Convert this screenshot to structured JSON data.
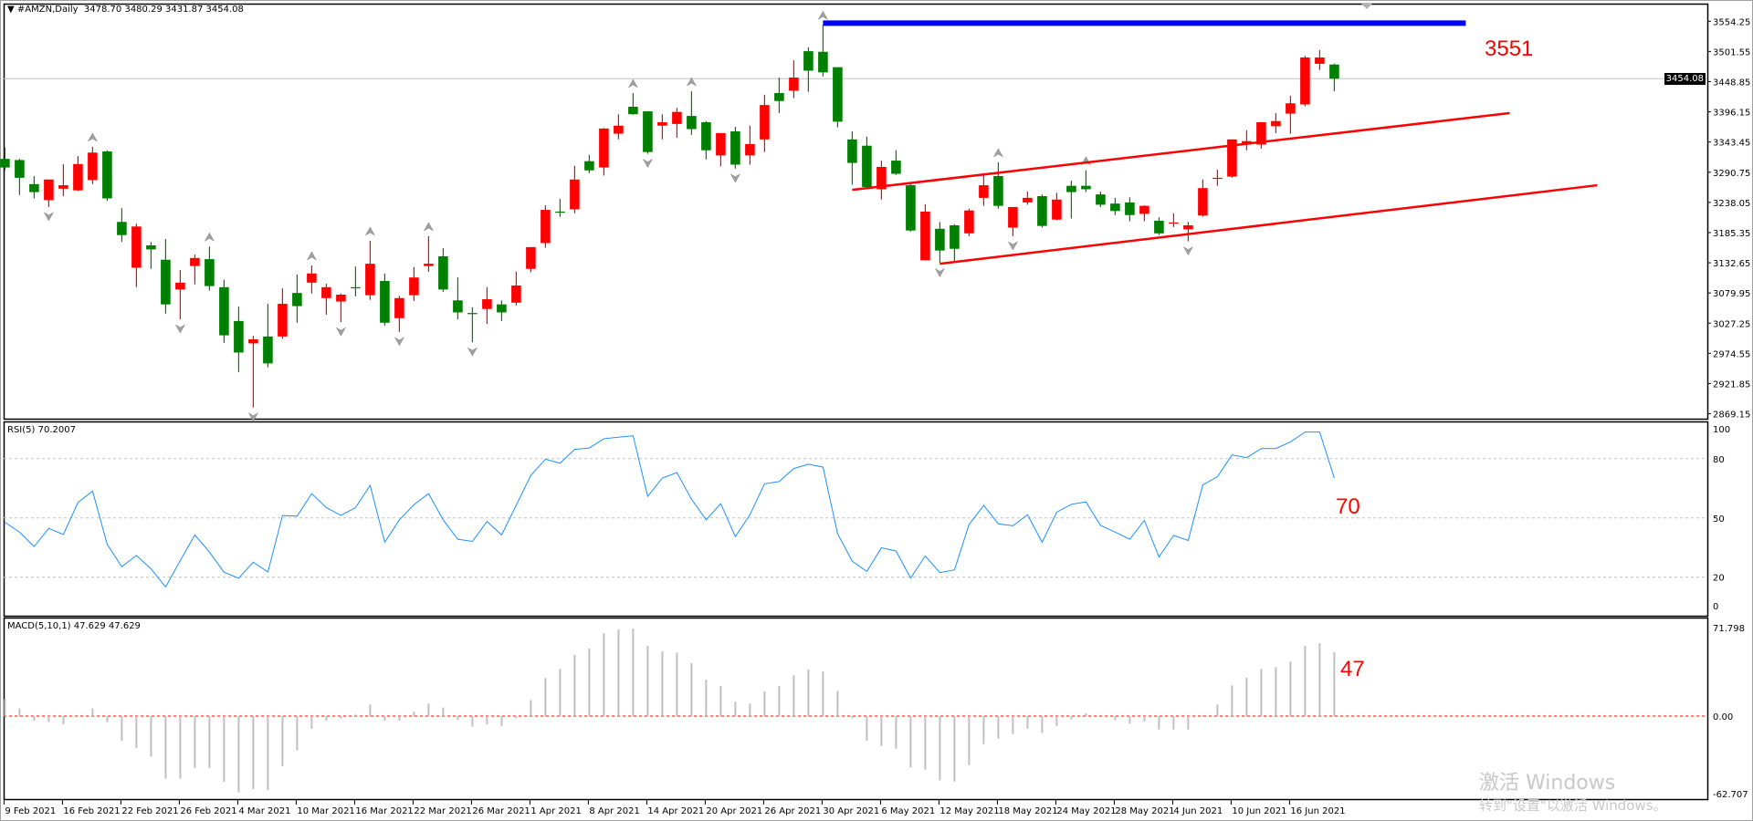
{
  "chart": {
    "symbol_title": "#AMZN,Daily",
    "ohlc_readout": "3478.70 3480.29 3431.87 3454.08",
    "current_price": "3454.08",
    "colors": {
      "bull": "#ff0000",
      "bear": "#008000",
      "rsi": "#1e90ff",
      "macd_hist": "#c0c0c0",
      "resistance": "#0000ff",
      "channel": "#ff0000"
    },
    "price_axis": [
      "3554.25",
      "3501.55",
      "3448.85",
      "3396.15",
      "3343.45",
      "3290.75",
      "3238.05",
      "3185.35",
      "3132.65",
      "3079.95",
      "3027.25",
      "2974.55",
      "2921.85",
      "2869.15"
    ],
    "date_labels": [
      "9 Feb 2021",
      "16 Feb 2021",
      "22 Feb 2021",
      "26 Feb 2021",
      "4 Mar 2021",
      "10 Mar 2021",
      "16 Mar 2021",
      "22 Mar 2021",
      "26 Mar 2021",
      "1 Apr 2021",
      "8 Apr 2021",
      "14 Apr 2021",
      "20 Apr 2021",
      "26 Apr 2021",
      "30 Apr 2021",
      "6 May 2021",
      "12 May 2021",
      "18 May 2021",
      "24 May 2021",
      "28 May 2021",
      "4 Jun 2021",
      "10 Jun 2021",
      "16 Jun 2021"
    ],
    "annotation_price": "3551",
    "annotation_rsi": "70",
    "annotation_macd": "47"
  },
  "rsi": {
    "title": "RSI(5) 70.2007",
    "axis": [
      "100",
      "80",
      "50",
      "20",
      "0"
    ]
  },
  "macd": {
    "title": "MACD(5,10,1) 47.629 47.629",
    "axis": [
      "71.798",
      "0.00",
      "-62.707"
    ]
  },
  "watermark": {
    "line1": "激活 Windows",
    "line2": "转到\"设置\"以激活 Windows。"
  },
  "chart_data": {
    "type": "candlestick",
    "ohlc": [
      [
        3314,
        3334,
        3294,
        3299
      ],
      [
        3312,
        3314,
        3251,
        3281
      ],
      [
        3270,
        3284,
        3245,
        3256
      ],
      [
        3242,
        3278,
        3230,
        3278
      ],
      [
        3262,
        3305,
        3249,
        3268
      ],
      [
        3259,
        3319,
        3258,
        3305
      ],
      [
        3277,
        3335,
        3270,
        3325
      ],
      [
        3327,
        3329,
        3241,
        3245
      ],
      [
        3204,
        3228,
        3169,
        3181
      ],
      [
        3124,
        3201,
        3090,
        3196
      ],
      [
        3163,
        3169,
        3122,
        3156
      ],
      [
        3138,
        3174,
        3044,
        3060
      ],
      [
        3086,
        3120,
        3034,
        3098
      ],
      [
        3127,
        3147,
        3095,
        3141
      ],
      [
        3139,
        3161,
        3084,
        3092
      ],
      [
        3090,
        3103,
        2993,
        3006
      ],
      [
        3031,
        3056,
        2942,
        2976
      ],
      [
        2992,
        3005,
        2880,
        2999
      ],
      [
        3004,
        3061,
        2950,
        2957
      ],
      [
        3004,
        3088,
        3000,
        3061
      ],
      [
        3080,
        3112,
        3028,
        3057
      ],
      [
        3098,
        3128,
        3079,
        3114
      ],
      [
        3071,
        3096,
        3042,
        3090
      ],
      [
        3065,
        3079,
        3029,
        3077
      ],
      [
        3090,
        3126,
        3074,
        3089
      ],
      [
        3076,
        3171,
        3068,
        3131
      ],
      [
        3101,
        3114,
        3023,
        3028
      ],
      [
        3036,
        3075,
        3012,
        3071
      ],
      [
        3076,
        3125,
        3066,
        3107
      ],
      [
        3127,
        3179,
        3117,
        3131
      ],
      [
        3144,
        3158,
        3082,
        3086
      ],
      [
        3067,
        3107,
        3034,
        3046
      ],
      [
        3045,
        3055,
        2994,
        3043
      ],
      [
        3052,
        3090,
        3026,
        3069
      ],
      [
        3060,
        3067,
        3031,
        3046
      ],
      [
        3063,
        3117,
        3058,
        3093
      ],
      [
        3122,
        3160,
        3116,
        3160
      ],
      [
        3167,
        3233,
        3159,
        3225
      ],
      [
        3222,
        3244,
        3213,
        3220
      ],
      [
        3226,
        3302,
        3219,
        3278
      ],
      [
        3310,
        3321,
        3289,
        3294
      ],
      [
        3299,
        3368,
        3285,
        3367
      ],
      [
        3358,
        3392,
        3348,
        3372
      ],
      [
        3405,
        3429,
        3391,
        3392
      ],
      [
        3397,
        3397,
        3323,
        3326
      ],
      [
        3372,
        3392,
        3348,
        3378
      ],
      [
        3375,
        3403,
        3351,
        3396
      ],
      [
        3389,
        3432,
        3356,
        3366
      ],
      [
        3378,
        3380,
        3313,
        3329
      ],
      [
        3320,
        3359,
        3301,
        3359
      ],
      [
        3362,
        3370,
        3297,
        3304
      ],
      [
        3320,
        3372,
        3304,
        3340
      ],
      [
        3348,
        3426,
        3326,
        3408
      ],
      [
        3429,
        3456,
        3394,
        3415
      ],
      [
        3433,
        3486,
        3420,
        3456
      ],
      [
        3502,
        3509,
        3431,
        3468
      ],
      [
        3501,
        3548,
        3458,
        3465
      ],
      [
        3474,
        3474,
        3369,
        3379
      ],
      [
        3348,
        3362,
        3269,
        3307
      ],
      [
        3337,
        3353,
        3262,
        3265
      ],
      [
        3261,
        3311,
        3243,
        3300
      ],
      [
        3311,
        3329,
        3286,
        3288
      ],
      [
        3268,
        3270,
        3187,
        3189
      ],
      [
        3137,
        3235,
        3137,
        3222
      ],
      [
        3192,
        3204,
        3132,
        3154
      ],
      [
        3198,
        3200,
        3132,
        3157
      ],
      [
        3184,
        3227,
        3179,
        3224
      ],
      [
        3246,
        3289,
        3232,
        3268
      ],
      [
        3284,
        3308,
        3227,
        3232
      ],
      [
        3194,
        3230,
        3179,
        3230
      ],
      [
        3238,
        3257,
        3234,
        3246
      ],
      [
        3249,
        3252,
        3194,
        3197
      ],
      [
        3208,
        3255,
        3207,
        3243
      ],
      [
        3267,
        3276,
        3210,
        3256
      ],
      [
        3267,
        3294,
        3256,
        3261
      ],
      [
        3252,
        3257,
        3230,
        3234
      ],
      [
        3236,
        3246,
        3216,
        3223
      ],
      [
        3238,
        3247,
        3205,
        3216
      ],
      [
        3218,
        3233,
        3205,
        3232
      ],
      [
        3206,
        3212,
        3181,
        3184
      ],
      [
        3202,
        3219,
        3195,
        3203
      ],
      [
        3191,
        3204,
        3170,
        3198
      ],
      [
        3215,
        3278,
        3213,
        3263
      ],
      [
        3280,
        3295,
        3267,
        3281
      ],
      [
        3283,
        3348,
        3281,
        3348
      ],
      [
        3339,
        3364,
        3329,
        3345
      ],
      [
        3339,
        3378,
        3332,
        3378
      ],
      [
        3371,
        3394,
        3359,
        3380
      ],
      [
        3393,
        3424,
        3358,
        3411
      ],
      [
        3409,
        3494,
        3406,
        3491
      ],
      [
        3480,
        3504,
        3469,
        3491
      ],
      [
        3478.7,
        3480.29,
        3431.87,
        3454.08
      ]
    ],
    "ylim": [
      2860,
      3585
    ],
    "fractals_up": [
      7,
      15,
      22,
      26,
      30,
      44,
      48,
      57,
      69,
      75
    ],
    "fractals_down": [
      4,
      13,
      18,
      24,
      28,
      33,
      45,
      51,
      65,
      70,
      82
    ],
    "resistance": {
      "price": 3551,
      "from_bar": 57,
      "to_bar": 101
    },
    "channel_upper": [
      [
        59,
        3260
      ],
      [
        104,
        3394
      ]
    ],
    "channel_lower": [
      [
        65,
        3131
      ],
      [
        110,
        3268
      ]
    ],
    "rsi": [
      47.8,
      42.8,
      35.5,
      44.7,
      41.6,
      57.8,
      63.6,
      36.6,
      25.3,
      31.0,
      24.2,
      15.0,
      28.4,
      41.4,
      32.7,
      22.5,
      19.5,
      27.6,
      22.6,
      51.2,
      50.9,
      62.3,
      55.2,
      51.3,
      55.2,
      66.5,
      37.7,
      49.0,
      56.7,
      62.3,
      49.0,
      39.2,
      38.1,
      48.2,
      41.4,
      56.4,
      71.5,
      79.7,
      77.7,
      84.7,
      85.4,
      90.1,
      90.9,
      91.6,
      60.9,
      70.2,
      72.9,
      59.5,
      49.0,
      57.2,
      40.5,
      51.6,
      67.3,
      68.4,
      75.0,
      77.2,
      75.7,
      42.0,
      28.1,
      22.9,
      34.9,
      33.2,
      19.5,
      30.7,
      22.3,
      23.7,
      46.7,
      56.3,
      47.0,
      46.0,
      51.6,
      37.7,
      52.9,
      56.9,
      58.1,
      46.2,
      42.8,
      39.2,
      48.8,
      30.2,
      41.1,
      38.6,
      66.7,
      70.9,
      81.9,
      80.5,
      85.1,
      85.1,
      88.5,
      93.5,
      93.5,
      70.2007
    ],
    "rsi_levels": [
      80,
      50,
      20
    ],
    "macd": [
      12.5,
      5.7,
      -3.4,
      -4.5,
      -6.1,
      0,
      5.7,
      -4.5,
      -18.6,
      -23.8,
      -30.2,
      -46.7,
      -46.7,
      -38.6,
      -38.6,
      -49.0,
      -56.9,
      -54.4,
      -55.1,
      -37.4,
      -25.6,
      -9.5,
      -3.4,
      -1.8,
      1.1,
      8.6,
      -3.4,
      -3.4,
      3.2,
      9.3,
      6.4,
      -2.9,
      -7.9,
      -6.1,
      -7.5,
      -1.6,
      12.0,
      28.4,
      35.2,
      45.6,
      50.3,
      61.7,
      64.6,
      65.3,
      52.4,
      48.3,
      47.4,
      39.5,
      27.2,
      22.5,
      10.7,
      9.3,
      18.4,
      22.5,
      30.4,
      34.7,
      33.3,
      18.8,
      -1.6,
      -18.4,
      -22.2,
      -24.3,
      -38.3,
      -39.9,
      -47.9,
      -48.8,
      -36.5,
      -20.9,
      -16.8,
      -13.4,
      -9.3,
      -12.5,
      -7.3,
      -2.5,
      2.0,
      0,
      -3.2,
      -5.7,
      -4.1,
      -10.0,
      -10.0,
      -10.0,
      0.7,
      8.6,
      22.9,
      28.6,
      35.2,
      36.5,
      40.8,
      52.4,
      54.4,
      47.629
    ],
    "macd_range": [
      -62.707,
      71.798
    ]
  }
}
